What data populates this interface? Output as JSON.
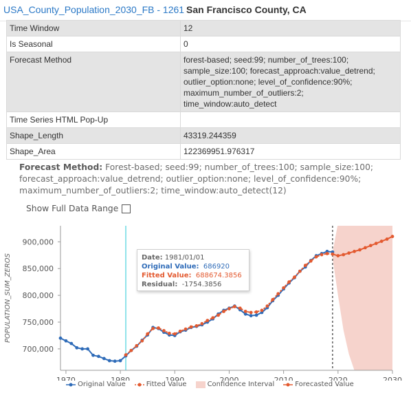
{
  "header": {
    "layer_name": "USA_County_Population_2030_FB - 1261",
    "feature_name": "San Francisco County, CA"
  },
  "attributes": [
    {
      "key": "Time Window",
      "value": "12"
    },
    {
      "key": "Is Seasonal",
      "value": "0"
    },
    {
      "key": "Forecast Method",
      "value": "forest-based; seed:99; number_of_trees:100; sample_size:100; forecast_approach:value_detrend; outlier_option:none; level_of_confidence:90%; maximum_number_of_outliers:2; time_window:auto_detect"
    },
    {
      "key": "Time Series HTML Pop-Up",
      "value": ""
    },
    {
      "key": "Shape_Length",
      "value": "43319.244359"
    },
    {
      "key": "Shape_Area",
      "value": "122369951.976317"
    }
  ],
  "method_text": {
    "label": "Forecast Method:",
    "value": "Forest-based; seed:99; number_of_trees:100; sample_size:100; forecast_approach:value_detrend; outlier_option:none; level_of_confidence:90%; maximum_number_of_outliers:2; time_window:auto_detect(12)"
  },
  "full_range": {
    "label": "Show Full Data Range",
    "checked": false
  },
  "tooltip": {
    "date_label": "Date:",
    "date_value": "1981/01/01",
    "original_label": "Original Value:",
    "original_value": "686920",
    "fitted_label": "Fitted Value:",
    "fitted_value": "688674.3856",
    "residual_label": "Residual:",
    "residual_value": "-1754.3856"
  },
  "legend": {
    "original": "Original Value",
    "fitted": "Fitted Value",
    "confidence": "Confidence Interval",
    "forecast": "Forecasted Value"
  },
  "colors": {
    "original": "#2e6bb8",
    "fitted": "#e35a30",
    "forecast": "#e35a30",
    "confidence": "#f6d3cc",
    "cursor_line": "#22c9d6"
  },
  "chart_data": {
    "type": "line",
    "ylabel": "POPULATION_SUM_ZEROS",
    "xlim": [
      1969,
      2030
    ],
    "ylim": [
      660000,
      930000
    ],
    "x_ticks": [
      1970,
      1980,
      1990,
      2000,
      2010,
      2020,
      2030
    ],
    "y_ticks": [
      700000,
      750000,
      800000,
      850000,
      900000
    ],
    "y_tick_labels": [
      "700,000",
      "750,000",
      "800,000",
      "850,000",
      "900,000"
    ],
    "cursor_year": 1981,
    "forecast_start_year": 2019,
    "series": [
      {
        "name": "Original Value",
        "x": [
          1969,
          1970,
          1971,
          1972,
          1973,
          1974,
          1975,
          1976,
          1977,
          1978,
          1979,
          1980,
          1981,
          1982,
          1983,
          1984,
          1985,
          1986,
          1987,
          1988,
          1989,
          1990,
          1991,
          1992,
          1993,
          1994,
          1995,
          1996,
          1997,
          1998,
          1999,
          2000,
          2001,
          2002,
          2003,
          2004,
          2005,
          2006,
          2007,
          2008,
          2009,
          2010,
          2011,
          2012,
          2013,
          2014,
          2015,
          2016,
          2017,
          2018,
          2019
        ],
        "values": [
          720000,
          715000,
          710000,
          702000,
          700000,
          700000,
          688000,
          686000,
          682000,
          678000,
          677000,
          678000,
          686920,
          697000,
          705000,
          716000,
          726000,
          740000,
          738000,
          731000,
          726000,
          725000,
          732000,
          735000,
          740000,
          742000,
          745000,
          750000,
          756000,
          765000,
          772000,
          776000,
          780000,
          773000,
          765000,
          762000,
          763000,
          768000,
          777000,
          790000,
          800000,
          812000,
          823000,
          833000,
          845000,
          853000,
          865000,
          874000,
          878000,
          882000,
          881000
        ]
      },
      {
        "name": "Fitted Value",
        "x": [
          1981,
          1982,
          1983,
          1984,
          1985,
          1986,
          1987,
          1988,
          1989,
          1990,
          1991,
          1992,
          1993,
          1994,
          1995,
          1996,
          1997,
          1998,
          1999,
          2000,
          2001,
          2002,
          2003,
          2004,
          2005,
          2006,
          2007,
          2008,
          2009,
          2010,
          2011,
          2012,
          2013,
          2014,
          2015,
          2016,
          2017,
          2018,
          2019
        ],
        "values": [
          688674,
          697000,
          706000,
          715000,
          728000,
          738000,
          739000,
          734000,
          729000,
          728000,
          733000,
          737000,
          741000,
          743000,
          747000,
          753000,
          758000,
          763000,
          770000,
          775000,
          779000,
          776000,
          770000,
          768000,
          769000,
          772000,
          780000,
          792000,
          803000,
          814000,
          825000,
          834000,
          845000,
          856000,
          864000,
          872000,
          876000,
          878000,
          877000
        ]
      },
      {
        "name": "Forecasted Value",
        "x": [
          2019,
          2020,
          2021,
          2022,
          2023,
          2024,
          2025,
          2026,
          2027,
          2028,
          2029,
          2030
        ],
        "values": [
          877000,
          874000,
          876000,
          879000,
          882000,
          885000,
          889000,
          893000,
          897000,
          901000,
          905000,
          910000
        ]
      },
      {
        "name": "Confidence Interval",
        "x": [
          2019,
          2020,
          2021,
          2022,
          2023,
          2024,
          2025,
          2026,
          2027,
          2028,
          2029,
          2030
        ],
        "upper": [
          880000,
          935000,
          935000,
          935000,
          935000,
          935000,
          935000,
          935000,
          935000,
          935000,
          935000,
          935000
        ],
        "lower": [
          870000,
          800000,
          735000,
          690000,
          660000,
          650000,
          650000,
          650000,
          650000,
          650000,
          650000,
          650000
        ]
      }
    ]
  }
}
